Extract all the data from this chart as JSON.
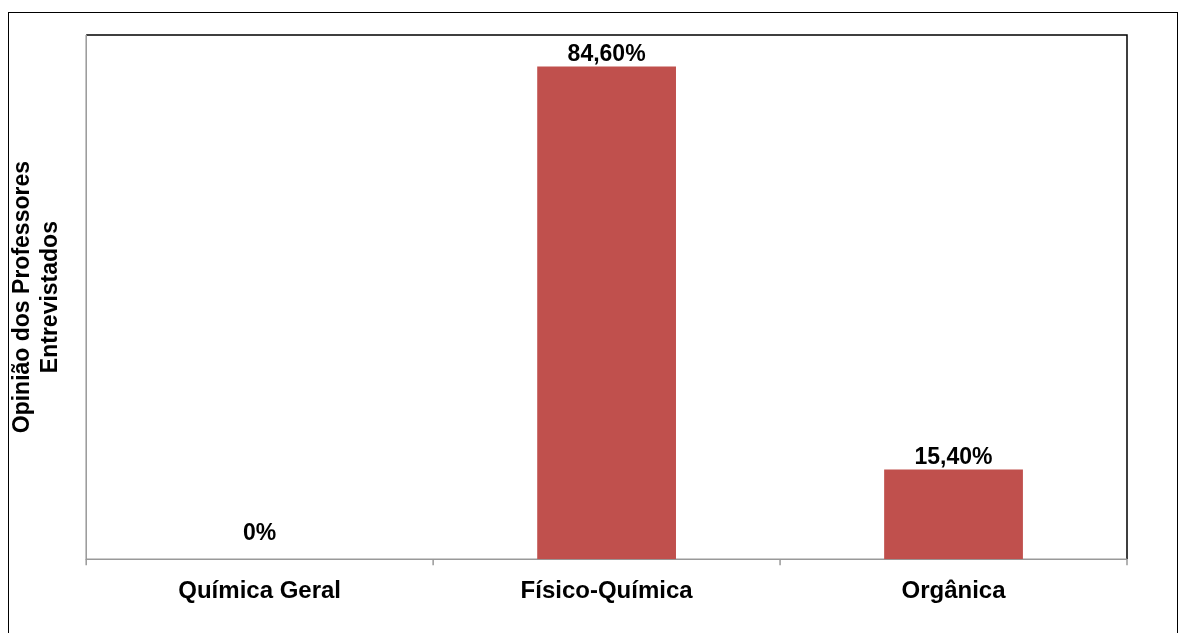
{
  "chart_data": {
    "type": "bar",
    "ylabel": "Opinião dos Professores\nEntrevistados",
    "categories": [
      "Química Geral",
      "Físico-Química",
      "Orgânica"
    ],
    "values": [
      0,
      84.6,
      15.4
    ],
    "color": "#c0504d",
    "value_labels": [
      "0%",
      "84,60%",
      "15,40%"
    ],
    "grid": false,
    "legend": false
  }
}
